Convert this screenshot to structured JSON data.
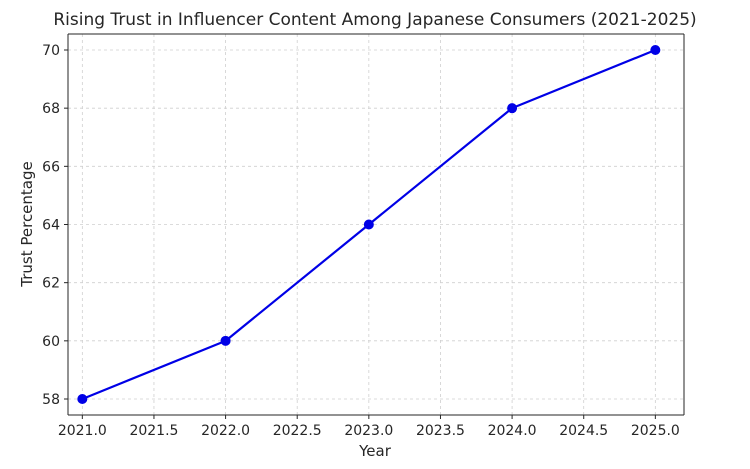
{
  "chart_data": {
    "type": "line",
    "title": "Rising Trust in Influencer Content Among Japanese Consumers (2021-2025)",
    "xlabel": "Year",
    "ylabel": "Trust Percentage",
    "xlim": [
      2020.9,
      2025.2
    ],
    "ylim": [
      57.45,
      70.55
    ],
    "xticks": [
      2021.0,
      2021.5,
      2022.0,
      2022.5,
      2023.0,
      2023.5,
      2024.0,
      2024.5,
      2025.0
    ],
    "xtick_labels": [
      "2021.0",
      "2021.5",
      "2022.0",
      "2022.5",
      "2023.0",
      "2023.5",
      "2024.0",
      "2024.5",
      "2025.0"
    ],
    "yticks": [
      58,
      60,
      62,
      64,
      66,
      68,
      70
    ],
    "ytick_labels": [
      "58",
      "60",
      "62",
      "64",
      "66",
      "68",
      "70"
    ],
    "grid": true,
    "series": [
      {
        "x": [
          2021,
          2022,
          2023,
          2024,
          2025
        ],
        "values": [
          58,
          60,
          64,
          68,
          70
        ],
        "color": "#0000e6",
        "marker": "circle"
      }
    ]
  }
}
